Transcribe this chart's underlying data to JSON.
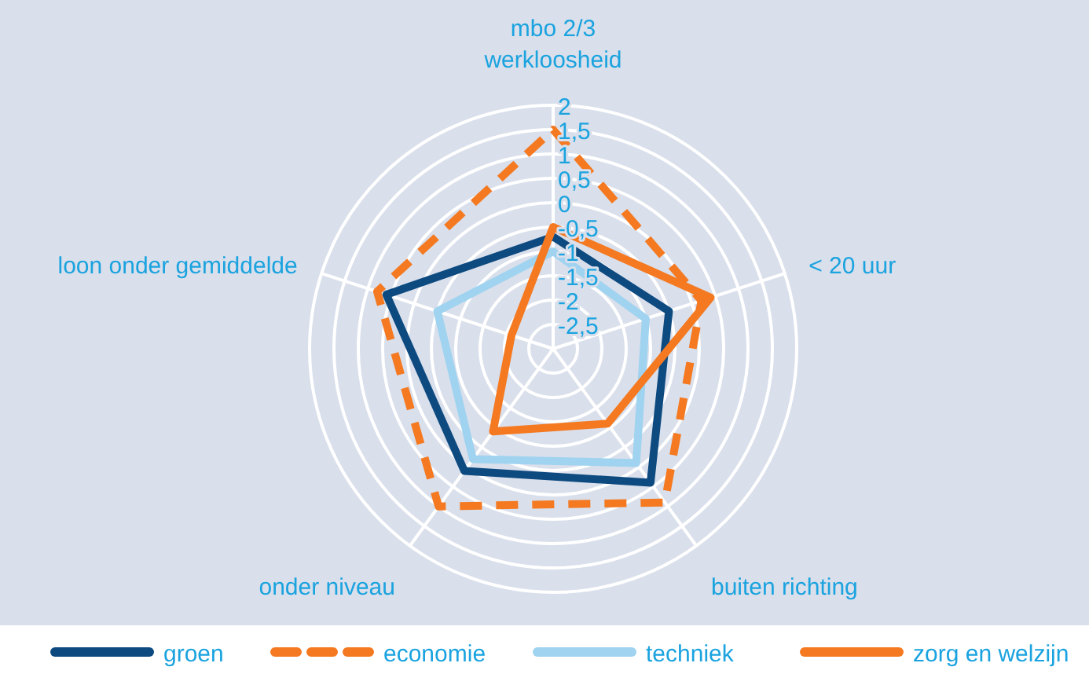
{
  "chart_data": {
    "type": "radar",
    "categories": [
      "mbo 2/3\nwerkloosheid",
      "< 20 uur",
      "buiten richting",
      "onder niveau",
      "loon onder gemiddelde"
    ],
    "ylim": [
      -3,
      2
    ],
    "yticks": [
      2,
      {
        "value": 1.5,
        "label": "1,5"
      },
      1,
      {
        "value": 0.5,
        "label": "0,5"
      },
      0,
      {
        "value": -0.5,
        "label": "-0,5"
      },
      -1,
      {
        "value": -1.5,
        "label": "-1,5"
      },
      -2,
      {
        "value": -2.5,
        "label": "-2,5"
      }
    ],
    "grid": true,
    "legend": "bottom",
    "marker": "none",
    "series": [
      {
        "name": "groen",
        "color": "#0d4a80",
        "line_style": "solid",
        "values": [
          -0.7,
          -0.5,
          0.4,
          0.1,
          0.6
        ]
      },
      {
        "name": "economie",
        "color": "#f47920",
        "line_style": "dashed",
        "values": [
          1.5,
          0.2,
          0.9,
          1.0,
          0.8
        ]
      },
      {
        "name": "techniek",
        "color": "#9fd3f0",
        "line_style": "solid",
        "values": [
          -1,
          -1,
          -0.1,
          -0.2,
          -0.5
        ]
      },
      {
        "name": "zorg en welzijn",
        "color": "#f47920",
        "line_style": "solid",
        "values": [
          -0.5,
          0.4,
          -1.1,
          -0.9,
          -2.1
        ]
      }
    ]
  }
}
